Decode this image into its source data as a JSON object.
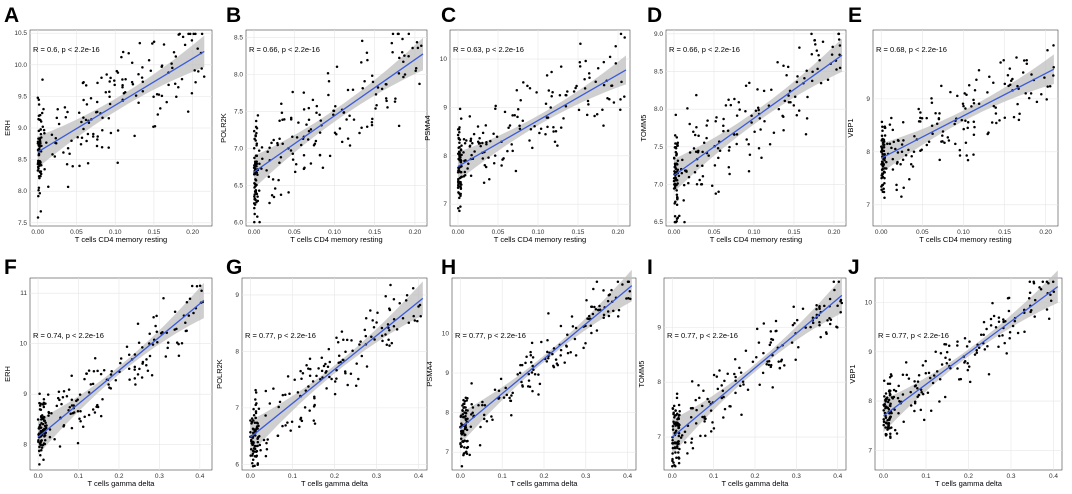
{
  "figure": {
    "panel_count": 10
  },
  "chart_data": [
    {
      "letter": "A",
      "type": "scatter",
      "title": "",
      "xlabel": "T cells CD4 memory resting",
      "ylabel": "ERH",
      "annotation": "R = 0.6, p < 2.2e-16",
      "xlim": [
        -0.01,
        0.225
      ],
      "ylim": [
        7.45,
        10.55
      ],
      "xticks": [
        0.0,
        0.05,
        0.1,
        0.15,
        0.2
      ],
      "xtick_labels": [
        "0.00",
        "0.05",
        "0.10",
        "0.15",
        "0.20"
      ],
      "yticks": [
        7.5,
        8.0,
        8.5,
        9.0,
        9.5,
        10.0,
        10.5
      ],
      "ytick_labels": [
        "7.5",
        "8.0",
        "8.5",
        "9.0",
        "9.5",
        "10.0",
        "10.5"
      ],
      "fit": {
        "intercept": 8.62,
        "slope": 7.4
      },
      "ci_halfwidth": {
        "min": 0.1,
        "max": 0.25
      },
      "xmax_fit": 0.215,
      "noise": 0.55,
      "seed": 11,
      "fit_color": "#3b5bdb",
      "ci_color": "#bfbfbf",
      "point_color": "#000000"
    },
    {
      "letter": "B",
      "type": "scatter",
      "title": "",
      "xlabel": "T cells CD4 memory resting",
      "ylabel": "POLR2K",
      "annotation": "R = 0.66, p < 2.2e-16",
      "xlim": [
        -0.01,
        0.215
      ],
      "ylim": [
        5.95,
        8.6
      ],
      "xticks": [
        0.0,
        0.05,
        0.1,
        0.15,
        0.2
      ],
      "xtick_labels": [
        "0.00",
        "0.05",
        "0.10",
        "0.15",
        "0.20"
      ],
      "yticks": [
        6.0,
        6.5,
        7.0,
        7.5,
        8.0,
        8.5
      ],
      "ytick_labels": [
        "6.0",
        "6.5",
        "7.0",
        "7.5",
        "8.0",
        "8.5"
      ],
      "fit": {
        "intercept": 6.68,
        "slope": 7.6
      },
      "ci_halfwidth": {
        "min": 0.08,
        "max": 0.22
      },
      "xmax_fit": 0.21,
      "noise": 0.48,
      "seed": 23,
      "fit_color": "#3b5bdb",
      "ci_color": "#bfbfbf",
      "point_color": "#000000"
    },
    {
      "letter": "C",
      "type": "scatter",
      "title": "",
      "xlabel": "T cells CD4 memory resting",
      "ylabel": "PSMA4",
      "annotation": "R = 0.63, p < 2.2e-16",
      "xlim": [
        -0.01,
        0.215
      ],
      "ylim": [
        6.55,
        10.6
      ],
      "xticks": [
        0.0,
        0.05,
        0.1,
        0.15,
        0.2
      ],
      "xtick_labels": [
        "0.00",
        "0.05",
        "0.10",
        "0.15",
        "0.20"
      ],
      "yticks": [
        7,
        8,
        9,
        10
      ],
      "ytick_labels": [
        "7",
        "8",
        "9",
        "10"
      ],
      "fit": {
        "intercept": 7.78,
        "slope": 9.5
      },
      "ci_halfwidth": {
        "min": 0.1,
        "max": 0.3
      },
      "xmax_fit": 0.21,
      "noise": 0.6,
      "seed": 37,
      "fit_color": "#3b5bdb",
      "ci_color": "#bfbfbf",
      "point_color": "#000000"
    },
    {
      "letter": "D",
      "type": "scatter",
      "title": "",
      "xlabel": "T cells CD4 memory resting",
      "ylabel": "TOMM5",
      "annotation": "R = 0.66, p < 2.2e-16",
      "xlim": [
        -0.01,
        0.215
      ],
      "ylim": [
        6.45,
        9.05
      ],
      "xticks": [
        0.0,
        0.05,
        0.1,
        0.15,
        0.2
      ],
      "xtick_labels": [
        "0.00",
        "0.05",
        "0.10",
        "0.15",
        "0.20"
      ],
      "yticks": [
        6.5,
        7.0,
        7.5,
        8.0,
        8.5,
        9.0
      ],
      "ytick_labels": [
        "6.5",
        "7.0",
        "7.5",
        "8.0",
        "8.5",
        "9.0"
      ],
      "fit": {
        "intercept": 7.12,
        "slope": 7.6
      },
      "ci_halfwidth": {
        "min": 0.08,
        "max": 0.22
      },
      "xmax_fit": 0.21,
      "noise": 0.45,
      "seed": 41,
      "fit_color": "#3b5bdb",
      "ci_color": "#bfbfbf",
      "point_color": "#000000"
    },
    {
      "letter": "E",
      "type": "scatter",
      "title": "",
      "xlabel": "T cells CD4 memory resting",
      "ylabel": "VBP1",
      "annotation": "R = 0.68, p < 2.2e-16",
      "xlim": [
        -0.01,
        0.215
      ],
      "ylim": [
        6.6,
        10.3
      ],
      "xticks": [
        0.0,
        0.05,
        0.1,
        0.15,
        0.2
      ],
      "xtick_labels": [
        "0.00",
        "0.05",
        "0.10",
        "0.15",
        "0.20"
      ],
      "yticks": [
        7,
        8,
        9
      ],
      "ytick_labels": [
        "7",
        "8",
        "9"
      ],
      "fit": {
        "intercept": 7.88,
        "slope": 8.0
      },
      "ci_halfwidth": {
        "min": 0.1,
        "max": 0.28
      },
      "xmax_fit": 0.21,
      "noise": 0.55,
      "seed": 53,
      "fit_color": "#3b5bdb",
      "ci_color": "#bfbfbf",
      "point_color": "#000000"
    },
    {
      "letter": "F",
      "type": "scatter",
      "title": "",
      "xlabel": "T cells gamma delta",
      "ylabel": "ERH",
      "annotation": "R = 0.74, p < 2.2e-16",
      "xlim": [
        -0.02,
        0.43
      ],
      "ylim": [
        7.5,
        11.3
      ],
      "xticks": [
        0.0,
        0.1,
        0.2,
        0.3,
        0.4
      ],
      "xtick_labels": [
        "0.0",
        "0.1",
        "0.2",
        "0.3",
        "0.4"
      ],
      "yticks": [
        8,
        9,
        10,
        11
      ],
      "ytick_labels": [
        "8",
        "9",
        "10",
        "11"
      ],
      "fit": {
        "intercept": 8.15,
        "slope": 6.6
      },
      "ci_halfwidth": {
        "min": 0.08,
        "max": 0.35
      },
      "xmax_fit": 0.41,
      "noise": 0.45,
      "seed": 61,
      "fit_color": "#3b5bdb",
      "ci_color": "#bfbfbf",
      "point_color": "#000000"
    },
    {
      "letter": "G",
      "type": "scatter",
      "title": "",
      "xlabel": "T cells gamma delta",
      "ylabel": "POLR2K",
      "annotation": "R = 0.77, p < 2.2e-16",
      "xlim": [
        -0.02,
        0.42
      ],
      "ylim": [
        5.9,
        9.3
      ],
      "xticks": [
        0.0,
        0.1,
        0.2,
        0.3,
        0.4
      ],
      "xtick_labels": [
        "0.0",
        "0.1",
        "0.2",
        "0.3",
        "0.4"
      ],
      "yticks": [
        6,
        7,
        8,
        9
      ],
      "ytick_labels": [
        "6",
        "7",
        "8",
        "9"
      ],
      "fit": {
        "intercept": 6.48,
        "slope": 6.0
      },
      "ci_halfwidth": {
        "min": 0.07,
        "max": 0.3
      },
      "xmax_fit": 0.41,
      "noise": 0.42,
      "seed": 71,
      "fit_color": "#3b5bdb",
      "ci_color": "#bfbfbf",
      "point_color": "#000000"
    },
    {
      "letter": "H",
      "type": "scatter",
      "title": "",
      "xlabel": "T cells gamma delta",
      "ylabel": "PSMA4",
      "annotation": "R = 0.77, p < 2.2e-16",
      "xlim": [
        -0.02,
        0.42
      ],
      "ylim": [
        6.55,
        11.4
      ],
      "xticks": [
        0.0,
        0.1,
        0.2,
        0.3,
        0.4
      ],
      "xtick_labels": [
        "0.0",
        "0.1",
        "0.2",
        "0.3",
        "0.4"
      ],
      "yticks": [
        7,
        8,
        9,
        10
      ],
      "ytick_labels": [
        "7",
        "8",
        "9",
        "10"
      ],
      "fit": {
        "intercept": 7.6,
        "slope": 8.8
      },
      "ci_halfwidth": {
        "min": 0.08,
        "max": 0.4
      },
      "xmax_fit": 0.41,
      "noise": 0.55,
      "seed": 83,
      "fit_color": "#3b5bdb",
      "ci_color": "#bfbfbf",
      "point_color": "#000000"
    },
    {
      "letter": "I",
      "type": "scatter",
      "title": "",
      "xlabel": "T cells gamma delta",
      "ylabel": "TOMM5",
      "annotation": "R = 0.77, p < 2.2e-16",
      "xlim": [
        -0.02,
        0.42
      ],
      "ylim": [
        6.4,
        9.9
      ],
      "xticks": [
        0.0,
        0.1,
        0.2,
        0.3,
        0.4
      ],
      "xtick_labels": [
        "0.0",
        "0.1",
        "0.2",
        "0.3",
        "0.4"
      ],
      "yticks": [
        7,
        8,
        9
      ],
      "ytick_labels": [
        "7",
        "8",
        "9"
      ],
      "fit": {
        "intercept": 7.0,
        "slope": 6.3
      },
      "ci_halfwidth": {
        "min": 0.07,
        "max": 0.32
      },
      "xmax_fit": 0.41,
      "noise": 0.42,
      "seed": 97,
      "fit_color": "#3b5bdb",
      "ci_color": "#bfbfbf",
      "point_color": "#000000"
    },
    {
      "letter": "J",
      "type": "scatter",
      "title": "",
      "xlabel": "T cells gamma delta",
      "ylabel": "VBP1",
      "annotation": "R = 0.77, p < 2.2e-16",
      "xlim": [
        -0.02,
        0.42
      ],
      "ylim": [
        6.6,
        10.5
      ],
      "xticks": [
        0.0,
        0.1,
        0.2,
        0.3,
        0.4
      ],
      "xtick_labels": [
        "0.0",
        "0.1",
        "0.2",
        "0.3",
        "0.4"
      ],
      "yticks": [
        7,
        8,
        9,
        10
      ],
      "ytick_labels": [
        "7",
        "8",
        "9",
        "10"
      ],
      "fit": {
        "intercept": 7.7,
        "slope": 6.4
      },
      "ci_halfwidth": {
        "min": 0.07,
        "max": 0.33
      },
      "xmax_fit": 0.41,
      "noise": 0.45,
      "seed": 103,
      "fit_color": "#3b5bdb",
      "ci_color": "#bfbfbf",
      "point_color": "#000000"
    }
  ]
}
